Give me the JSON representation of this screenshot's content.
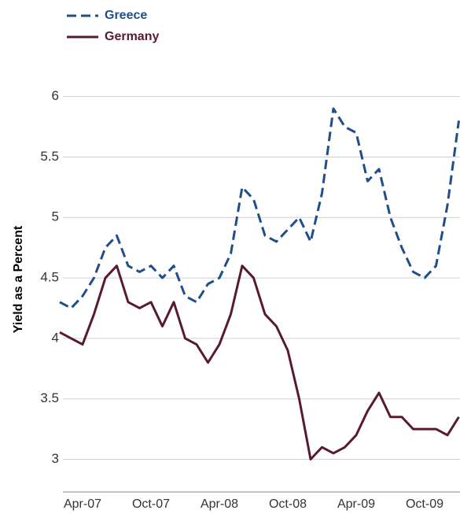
{
  "chart_data": {
    "type": "line",
    "y_label": "Yield as a Percent",
    "categories": [
      null,
      null,
      "Apr-07",
      null,
      null,
      null,
      null,
      null,
      "Oct-07",
      null,
      null,
      null,
      null,
      null,
      "Apr-08",
      null,
      null,
      null,
      null,
      null,
      "Oct-08",
      null,
      null,
      null,
      null,
      null,
      "Apr-09",
      null,
      null,
      null,
      null,
      null,
      "Oct-09",
      null,
      null,
      null
    ],
    "series": [
      {
        "name": "Greece",
        "color": "#1f4e8c",
        "style": "dashed",
        "values": [
          4.3,
          4.25,
          4.35,
          4.5,
          4.75,
          4.85,
          4.6,
          4.55,
          4.6,
          4.5,
          4.6,
          4.35,
          4.3,
          4.45,
          4.5,
          4.7,
          5.25,
          5.15,
          4.85,
          4.8,
          4.9,
          5.0,
          4.8,
          5.2,
          5.9,
          5.75,
          5.7,
          5.3,
          5.4,
          5.0,
          4.75,
          4.55,
          4.5,
          4.6,
          5.1,
          5.8
        ]
      },
      {
        "name": "Germany",
        "color": "#5a1a2e",
        "style": "solid",
        "values": [
          4.05,
          4.0,
          3.95,
          4.2,
          4.5,
          4.6,
          4.3,
          4.25,
          4.3,
          4.1,
          4.3,
          4.0,
          3.95,
          3.8,
          3.95,
          4.2,
          4.6,
          4.5,
          4.2,
          4.1,
          3.9,
          3.5,
          3.0,
          3.1,
          3.05,
          3.1,
          3.2,
          3.4,
          3.55,
          3.35,
          3.35,
          3.25,
          3.25,
          3.25,
          3.2,
          3.35
        ]
      }
    ],
    "ylim": [
      2.73,
      6.31
    ],
    "yticks": [
      3,
      3.5,
      4,
      4.5,
      5,
      5.5,
      6
    ],
    "grid": true,
    "legend": "top-left"
  }
}
